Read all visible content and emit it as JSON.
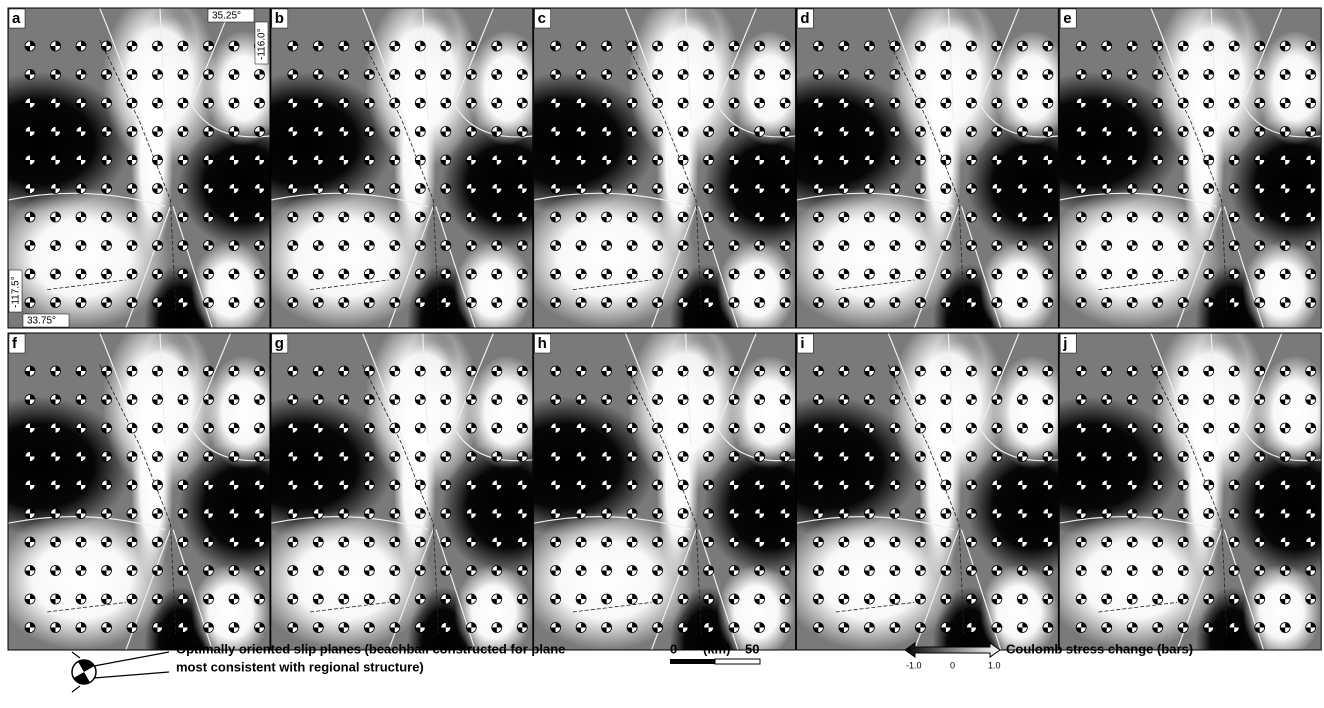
{
  "panels": [
    {
      "label": "a"
    },
    {
      "label": "b"
    },
    {
      "label": "c"
    },
    {
      "label": "d"
    },
    {
      "label": "e"
    },
    {
      "label": "f"
    },
    {
      "label": "g"
    },
    {
      "label": "h"
    },
    {
      "label": "i"
    },
    {
      "label": "j"
    }
  ],
  "coordinates": {
    "top_lat": "35.25°",
    "right_lon": "-116.0°",
    "left_lon": "-117.5°",
    "bottom_lat": "33.75°"
  },
  "legend": {
    "beachball_text": [
      "Optimally oriented slip planes (beachball constructed for plane",
      "most consistent with regional structure)"
    ],
    "scale": {
      "start": "0",
      "unit": "(km)",
      "end": "50"
    },
    "colorbar": {
      "min": "-1.0",
      "mid": "0",
      "max": "1.0",
      "title": "Coulomb stress change (bars)"
    }
  }
}
